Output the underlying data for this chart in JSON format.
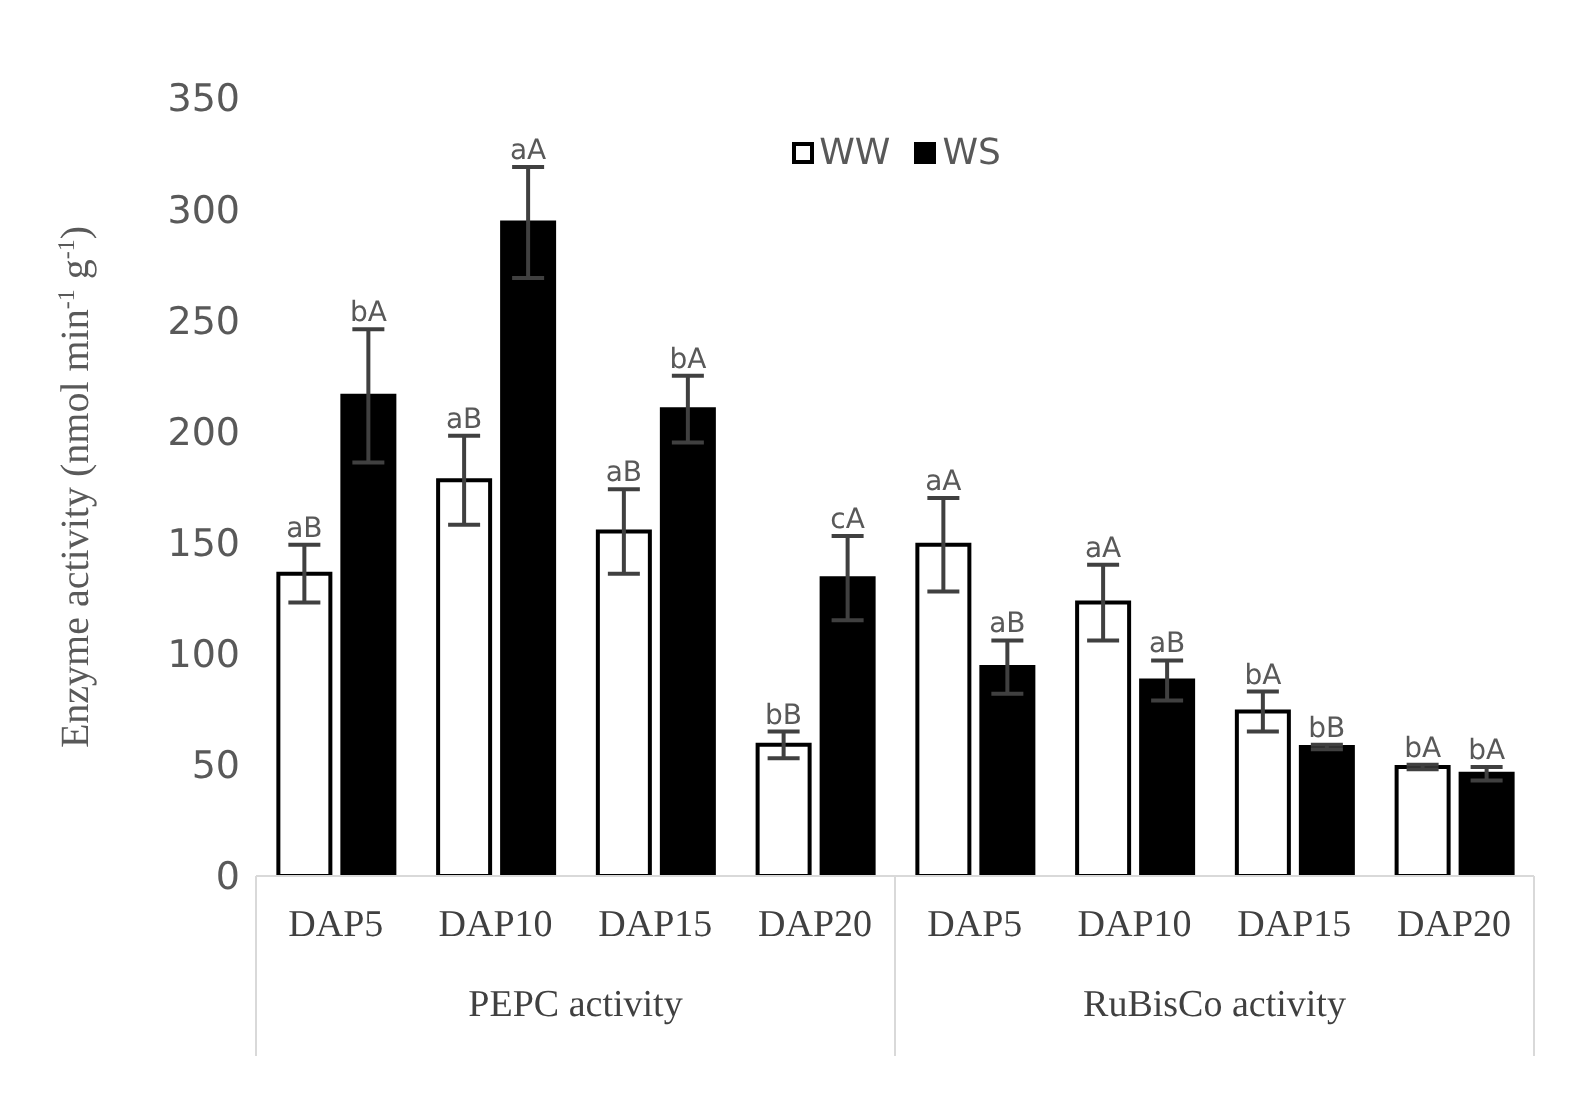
{
  "chart_data": {
    "type": "bar",
    "ylabel": "Enzyme activity (nmol min$^{-1}$ g$^{-1}$)",
    "categories": [
      "DAP5",
      "DAP10",
      "DAP15",
      "DAP20",
      "DAP5",
      "DAP10",
      "DAP15",
      "DAP20"
    ],
    "annotations": [
      "PEPC activity",
      "RuBisCo activity"
    ],
    "series": [
      {
        "name": "WW",
        "color": "#ffffff",
        "values": [
          136,
          178,
          155,
          59,
          149,
          123,
          74,
          49
        ],
        "errors": [
          13,
          20,
          19,
          6,
          21,
          17,
          9,
          1
        ],
        "value_labels": [
          "aB",
          "aB",
          "aB",
          "bB",
          "aA",
          "aA",
          "bA",
          "bA"
        ]
      },
      {
        "name": "WS",
        "color": "#000000",
        "values": [
          216,
          294,
          210,
          134,
          94,
          88,
          58,
          46
        ],
        "errors": [
          30,
          25,
          15,
          19,
          12,
          9,
          1,
          3
        ],
        "value_labels": [
          "bA",
          "aA",
          "bA",
          "cA",
          "aB",
          "aB",
          "bB",
          "bA"
        ]
      }
    ],
    "ylim": [
      0,
      350
    ],
    "yticks": [
      0,
      50,
      100,
      150,
      200,
      250,
      300,
      350
    ],
    "grid": false,
    "legend": "top"
  }
}
